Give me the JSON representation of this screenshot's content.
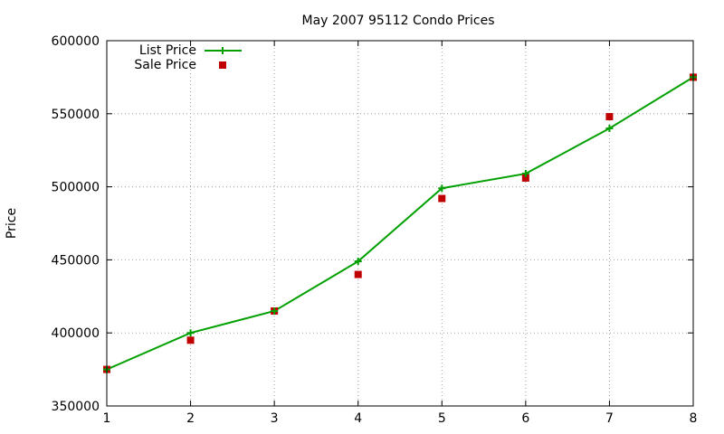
{
  "chart_data": {
    "type": "line",
    "title": "May 2007 95112 Condo Prices",
    "xlabel": "",
    "ylabel": "Price",
    "x": [
      1,
      2,
      3,
      4,
      5,
      6,
      7,
      8
    ],
    "xlim": [
      1,
      8
    ],
    "ylim": [
      350000,
      600000
    ],
    "xticks": [
      1,
      2,
      3,
      4,
      5,
      6,
      7,
      8
    ],
    "yticks": [
      350000,
      400000,
      450000,
      500000,
      550000,
      600000
    ],
    "grid": true,
    "legend_position": "top-left",
    "series": [
      {
        "name": "List Price",
        "style": "lines-with-plus-points",
        "color": "#00a000",
        "values": [
          375000,
          400000,
          415000,
          449000,
          499000,
          509000,
          540000,
          575000
        ]
      },
      {
        "name": "Sale Price",
        "style": "square-points",
        "color": "#c00000",
        "values": [
          375000,
          395000,
          415000,
          440000,
          492000,
          506000,
          548000,
          575000
        ]
      }
    ]
  }
}
